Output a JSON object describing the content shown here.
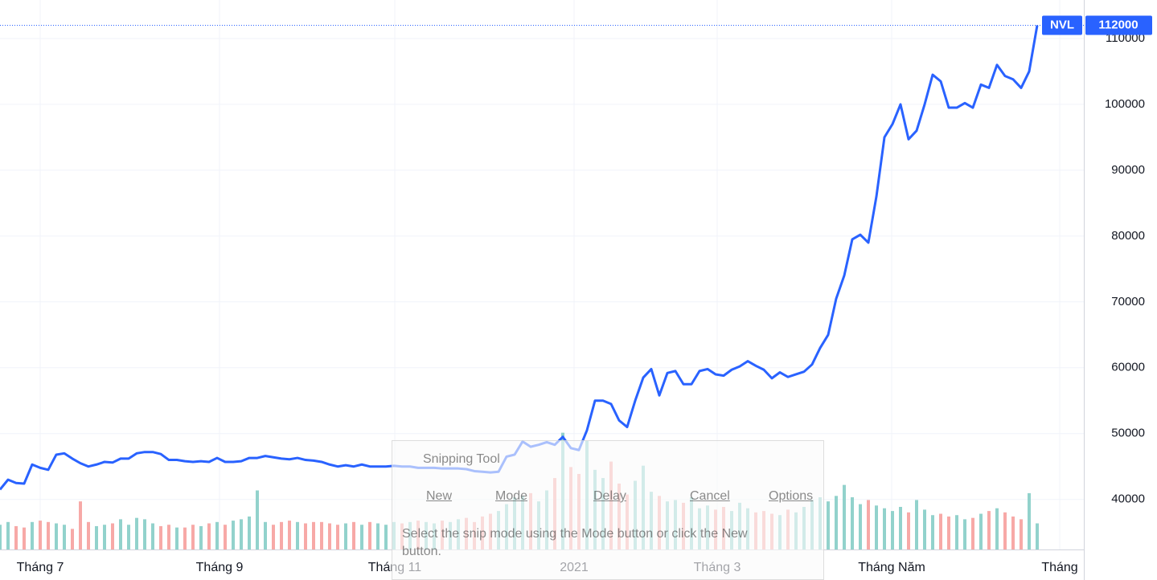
{
  "chart_data": {
    "type": "line",
    "series": [
      {
        "name": "NVL",
        "color": "#2962ff",
        "values": [
          41500,
          43000,
          42500,
          42400,
          45300,
          44800,
          44500,
          46800,
          47000,
          46200,
          45500,
          45000,
          45300,
          45700,
          45600,
          46200,
          46200,
          47000,
          47200,
          47200,
          46900,
          46000,
          46000,
          45800,
          45700,
          45800,
          45700,
          46300,
          45700,
          45700,
          45800,
          46300,
          46300,
          46600,
          46400,
          46200,
          46100,
          46300,
          46000,
          45900,
          45700,
          45300,
          45000,
          45200,
          45000,
          45300,
          45000,
          45000,
          45000,
          45100,
          45000,
          45000,
          44800,
          44800,
          44800,
          44700,
          44700,
          44700,
          44600,
          44300,
          44200,
          44100,
          44200,
          46500,
          46800,
          48800,
          48000,
          48300,
          48700,
          48300,
          49500,
          47800,
          47500,
          50500,
          55000,
          55000,
          54500,
          52000,
          51000,
          55000,
          58500,
          59800,
          55800,
          59200,
          59500,
          57500,
          57500,
          59500,
          59800,
          59000,
          58800,
          59700,
          60200,
          61000,
          60300,
          59700,
          58400,
          59300,
          58600,
          59000,
          59400,
          60500,
          63000,
          65000,
          70500,
          74000,
          79500,
          80200,
          79000,
          86000,
          95000,
          97000,
          100000,
          94700,
          96000,
          100000,
          104500,
          103500,
          99500,
          99500,
          100200,
          99500,
          103000,
          102500,
          106000,
          104300,
          103800,
          102500,
          105000,
          112000
        ]
      }
    ],
    "volume": {
      "up_color": "#92d2cc",
      "down_color": "#f7a9a7",
      "values": [
        1.8,
        2.0,
        1.7,
        1.6,
        2.0,
        2.1,
        2.0,
        1.9,
        1.8,
        1.5,
        3.5,
        2.0,
        1.7,
        1.8,
        1.9,
        2.2,
        1.8,
        2.3,
        2.2,
        1.9,
        1.7,
        1.8,
        1.6,
        1.6,
        1.8,
        1.7,
        1.9,
        2.0,
        1.8,
        2.1,
        2.2,
        2.4,
        4.3,
        2.0,
        1.8,
        2.0,
        2.1,
        2.0,
        1.9,
        2.0,
        2.0,
        1.9,
        1.8,
        1.9,
        2.0,
        1.8,
        2.0,
        1.9,
        1.8,
        2.0,
        1.9,
        2.0,
        2.1,
        2.0,
        1.9,
        2.1,
        2.0,
        2.2,
        2.3,
        2.0,
        2.4,
        2.6,
        2.8,
        3.3,
        3.8,
        3.9,
        4.1,
        3.5,
        4.3,
        5.2,
        8.5,
        6.0,
        5.5,
        7.9,
        5.8,
        5.2,
        6.4,
        4.8,
        4.0,
        5.0,
        6.1,
        4.2,
        3.9,
        3.5,
        3.6,
        3.4,
        3.8,
        3.0,
        3.2,
        2.9,
        3.1,
        2.8,
        3.4,
        3.0,
        2.7,
        2.8,
        2.6,
        2.5,
        2.9,
        2.7,
        3.1,
        3.6,
        3.8,
        3.5,
        3.9,
        4.7,
        3.8,
        3.3,
        3.6,
        3.2,
        3.0,
        2.8,
        3.1,
        2.7,
        3.6,
        2.9,
        2.5,
        2.6,
        2.4,
        2.5,
        2.2,
        2.3,
        2.6,
        2.8,
        3.0,
        2.7,
        2.4,
        2.2,
        4.1,
        1.9
      ],
      "y2lim": [
        0,
        40
      ]
    },
    "xlim": [
      0,
      134.8
    ],
    "xticks": [
      {
        "value": 5,
        "label": "Tháng 7"
      },
      {
        "value": 27.3,
        "label": "Tháng 9"
      },
      {
        "value": 49.1,
        "label": "Tháng 11"
      },
      {
        "value": 71.4,
        "label": "2021"
      },
      {
        "value": 89.2,
        "label": "Tháng 3"
      },
      {
        "value": 110.9,
        "label": "Tháng Năm"
      },
      {
        "value": 131.8,
        "label": "Tháng"
      }
    ],
    "ylim": [
      32400,
      115850
    ],
    "yticks": [
      40000,
      50000,
      60000,
      70000,
      80000,
      90000,
      100000,
      110000
    ],
    "grid": true
  },
  "snipping_tool": {
    "title": "Snipping Tool",
    "buttons": [
      "New",
      "Mode",
      "Delay",
      "Cancel",
      "Options"
    ],
    "message": "Select the snip mode using the Mode button or click the New button."
  }
}
